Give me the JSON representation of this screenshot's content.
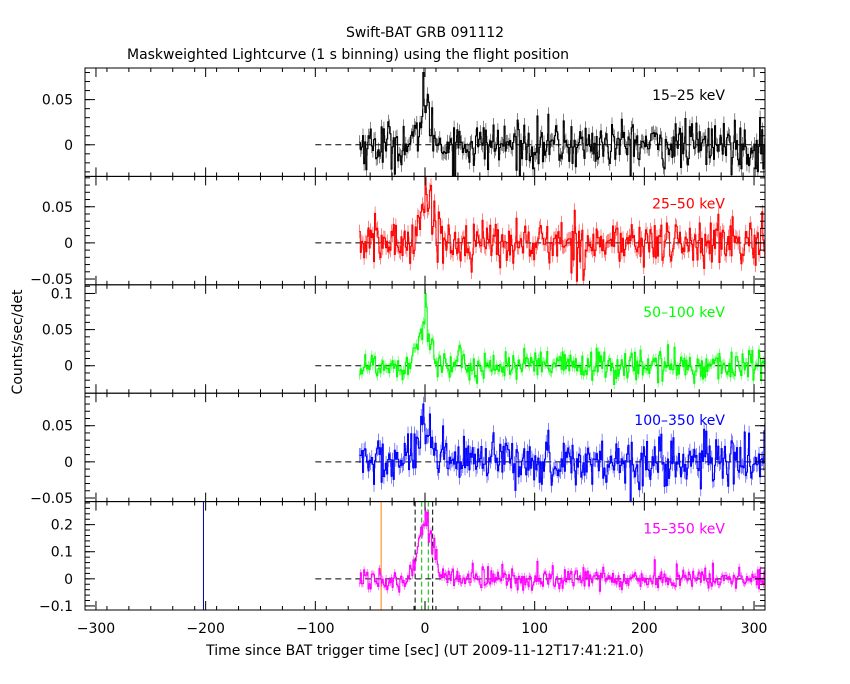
{
  "chart_data": {
    "type": "line",
    "title": "Swift-BAT GRB 091112",
    "subtitle": "Maskweighted Lightcurve (1 s binning) using the flight position",
    "xlabel": "Time since BAT trigger time [sec] (UT 2009-11-12T17:41:21.0)",
    "ylabel": "Counts/sec/det",
    "xlim": [
      -310,
      310
    ],
    "xticks": [
      -300,
      -200,
      -100,
      0,
      100,
      200,
      300
    ],
    "xtick_labels": [
      "−300",
      "−200",
      "−100",
      "0",
      "100",
      "200",
      "300"
    ],
    "data_start": -60,
    "data_end": 310,
    "bin_size_s": 1,
    "zero_dash_start": -100,
    "series": [
      {
        "name": "15–25 keV",
        "color": "#000000",
        "ylim": [
          -0.035,
          0.085
        ],
        "yticks": [
          0,
          0.05
        ],
        "ytick_labels": [
          "0",
          "0.05"
        ],
        "noise_sigma": 0.013,
        "peak_value": 0.08,
        "pulse_amp": 0.042,
        "pulse_center": -2,
        "pulse_rise": 3,
        "pulse_decay": 6
      },
      {
        "name": "25–50 keV",
        "color": "#ff0000",
        "ylim": [
          -0.058,
          0.092
        ],
        "yticks": [
          -0.05,
          0,
          0.05
        ],
        "ytick_labels": [
          "−0.05",
          "0",
          "0.05"
        ],
        "noise_sigma": 0.016,
        "peak_value": 0.09,
        "pulse_amp": 0.055,
        "pulse_center": 0,
        "pulse_rise": 6,
        "pulse_decay": 8
      },
      {
        "name": "50–100 keV",
        "color": "#00ff00",
        "ylim": [
          -0.038,
          0.112
        ],
        "yticks": [
          0,
          0.05,
          0.1
        ],
        "ytick_labels": [
          "0",
          "0.05",
          "0.1"
        ],
        "noise_sigma": 0.011,
        "peak_value": 0.1,
        "pulse_amp": 0.06,
        "pulse_center": 0,
        "pulse_rise": 7,
        "pulse_decay": 5
      },
      {
        "name": "100–350 keV",
        "color": "#0000ff",
        "ylim": [
          -0.055,
          0.095
        ],
        "yticks": [
          -0.05,
          0,
          0.05
        ],
        "ytick_labels": [
          "−0.05",
          "0",
          "0.05"
        ],
        "noise_sigma": 0.017,
        "peak_value": 0.08,
        "pulse_amp": 0.03,
        "pulse_center": -2,
        "pulse_rise": 8,
        "pulse_decay": 8
      },
      {
        "name": "15–350 keV",
        "color": "#ff00ff",
        "ylim": [
          -0.115,
          0.285
        ],
        "yticks": [
          -0.1,
          0,
          0.1,
          0.2
        ],
        "ytick_labels": [
          "−0.1",
          "0",
          "0.1",
          "0.2"
        ],
        "noise_sigma": 0.022,
        "peak_value": 0.25,
        "pulse_amp": 0.2,
        "pulse_center": 0,
        "pulse_rise": 7,
        "pulse_decay": 7,
        "markers": [
          {
            "x": -202,
            "color": "#0000aa",
            "style": "solid"
          },
          {
            "x": -40,
            "color": "#ff8000",
            "style": "solid"
          },
          {
            "x": -9,
            "color": "#000000",
            "style": "dashed"
          },
          {
            "x": 7,
            "color": "#000000",
            "style": "dashed"
          },
          {
            "x": -3,
            "color": "#00bb00",
            "style": "dashed"
          },
          {
            "x": 3,
            "color": "#00bb00",
            "style": "dashed"
          }
        ]
      }
    ]
  }
}
